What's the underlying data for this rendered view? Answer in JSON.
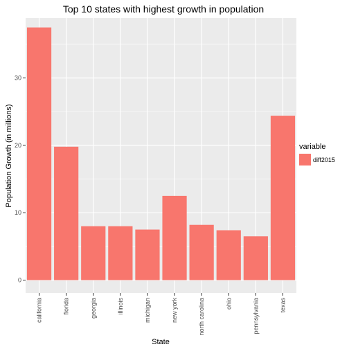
{
  "chart_data": {
    "type": "bar",
    "title": "Top 10 states with highest growth in population",
    "xlabel": "State",
    "ylabel": "Population Growth (in millions)",
    "categories": [
      "california",
      "florida",
      "georgia",
      "illinois",
      "michigan",
      "new york",
      "north carolina",
      "ohio",
      "pennsylvania",
      "texas"
    ],
    "series": [
      {
        "name": "diff2015",
        "values": [
          37.5,
          19.8,
          8.0,
          8.0,
          7.5,
          12.5,
          8.2,
          7.4,
          6.5,
          24.4
        ],
        "color": "#f8766d"
      }
    ],
    "ylim": [
      -1.9,
      38.9
    ],
    "yticks": [
      0,
      10,
      20,
      30
    ],
    "grid": true,
    "legend": {
      "title": "variable",
      "placement": "right"
    },
    "panel_background": "#ebebeb",
    "grid_color": "#ffffff"
  }
}
